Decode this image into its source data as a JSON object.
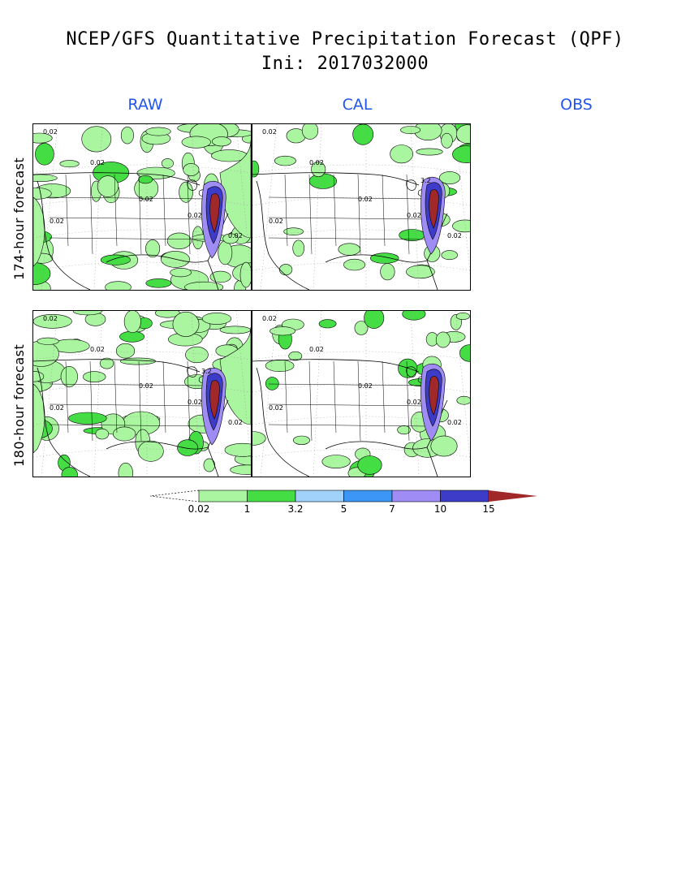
{
  "title": {
    "line1": "NCEP/GFS Quantitative Precipitation Forecast (QPF)",
    "line2": "Ini: 2017032000"
  },
  "columns": [
    "RAW",
    "CAL",
    "OBS"
  ],
  "rows": [
    "174-hour forecast",
    "180-hour forecast"
  ],
  "panels": [
    {
      "row": 0,
      "col": 0,
      "contour_label": "0.02",
      "intensity": "high"
    },
    {
      "row": 0,
      "col": 1,
      "contour_label": "0.02",
      "intensity": "low",
      "peak_label": "3.2"
    },
    {
      "row": 1,
      "col": 0,
      "contour_label": "0.02",
      "intensity": "high",
      "peak_label": "3.2"
    },
    {
      "row": 1,
      "col": 1,
      "contour_label": "0.02",
      "intensity": "low"
    }
  ],
  "colorbar": {
    "levels": [
      "0.02",
      "1",
      "3.2",
      "5",
      "7",
      "10",
      "15"
    ],
    "colors": [
      "#aaf5a0",
      "#44dd44",
      "#a0d2fa",
      "#3c96f5",
      "#a08cf5",
      "#3c3cc8",
      "#a02828"
    ]
  }
}
